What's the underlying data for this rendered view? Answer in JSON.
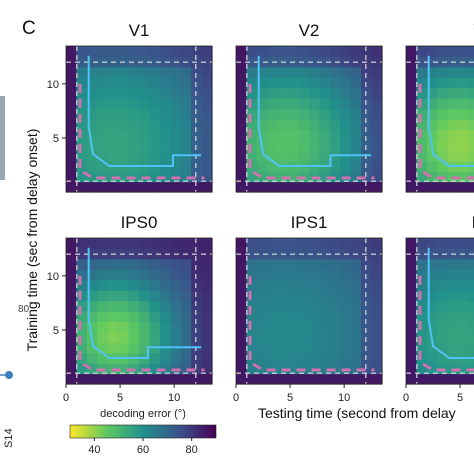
{
  "figure": {
    "panel_letter": "C",
    "y_axis_label": "Training time (sec from delay onset)",
    "x_axis_label": "Testing time (second from delay",
    "colorbar_label": "decoding error (°)",
    "left_fragments": [
      "80",
      "S14"
    ]
  },
  "chart_data": {
    "type": "heatmap",
    "colormap": "viridis",
    "value_meaning": "decoding error (°)",
    "colorbar": {
      "range": [
        30,
        90
      ],
      "ticks": [
        40,
        60,
        80
      ]
    },
    "x_range_sec": [
      0,
      13.5
    ],
    "y_range_sec": [
      0,
      13.5
    ],
    "delay_markers_sec": {
      "horizontal": [
        1,
        12
      ],
      "vertical": [
        1,
        12
      ]
    },
    "x_ticks": [
      0,
      5,
      10
    ],
    "y_ticks": [
      5,
      10
    ],
    "contour_colors": {
      "cyan": "#4fc3f7",
      "pink": "#d86fb0",
      "marker": "#dddddd"
    },
    "panels": [
      {
        "title": "V1",
        "min_error": 55,
        "min_at": [
          4.5,
          4.5
        ],
        "spread": 7,
        "cyan_contour": true,
        "pink_contour": true
      },
      {
        "title": "V2",
        "min_error": 47,
        "min_at": [
          4.5,
          4.5
        ],
        "spread": 5.5,
        "cyan_contour": true,
        "pink_contour": true
      },
      {
        "title": "V",
        "min_error": 40,
        "min_at": [
          5.0,
          4.5
        ],
        "spread": 5,
        "cyan_contour": true,
        "pink_contour": true
      },
      {
        "title": "IPS0",
        "min_error": 42,
        "min_at": [
          4.5,
          4.5
        ],
        "spread": 4,
        "cyan_contour": true,
        "pink_contour": true
      },
      {
        "title": "IPS1",
        "min_error": 62,
        "min_at": [
          4.5,
          4.5
        ],
        "spread": 8,
        "cyan_contour": false,
        "pink_contour": true
      },
      {
        "title": "IF",
        "min_error": 55,
        "min_at": [
          5.0,
          4.5
        ],
        "spread": 6,
        "cyan_contour": true,
        "pink_contour": true
      }
    ]
  }
}
